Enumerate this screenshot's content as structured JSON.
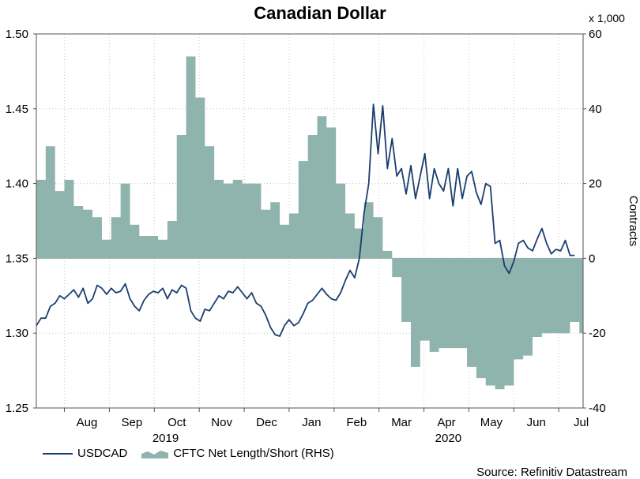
{
  "chart_data": {
    "type": "line+area",
    "title": "Canadian Dollar",
    "left_axis": {
      "min": 1.25,
      "max": 1.5,
      "ticks": [
        "1.50",
        "1.45",
        "1.40",
        "1.35",
        "1.30",
        "1.25"
      ]
    },
    "right_axis": {
      "min": -40,
      "max": 60,
      "ticks": [
        "60",
        "40",
        "20",
        "0",
        "-20",
        "-40"
      ],
      "label": "Contracts",
      "unit": "x 1,000"
    },
    "months": [
      "Aug",
      "Sep",
      "Oct",
      "Nov",
      "Dec",
      "Jan",
      "Feb",
      "Mar",
      "Apr",
      "May",
      "Jun",
      "Jul"
    ],
    "years": [
      "2019",
      "2020"
    ],
    "series_line": {
      "name": "USDCAD",
      "color": "#1a3e6e",
      "points": [
        [
          0,
          1.305
        ],
        [
          0.25,
          1.31
        ],
        [
          0.5,
          1.31
        ],
        [
          0.75,
          1.318
        ],
        [
          1,
          1.32
        ],
        [
          1.25,
          1.325
        ],
        [
          1.5,
          1.323
        ],
        [
          1.75,
          1.326
        ],
        [
          2,
          1.329
        ],
        [
          2.25,
          1.324
        ],
        [
          2.5,
          1.33
        ],
        [
          2.75,
          1.32
        ],
        [
          3,
          1.323
        ],
        [
          3.25,
          1.332
        ],
        [
          3.5,
          1.33
        ],
        [
          3.75,
          1.326
        ],
        [
          4,
          1.33
        ],
        [
          4.25,
          1.327
        ],
        [
          4.5,
          1.328
        ],
        [
          4.75,
          1.333
        ],
        [
          5,
          1.323
        ],
        [
          5.25,
          1.318
        ],
        [
          5.5,
          1.315
        ],
        [
          5.75,
          1.322
        ],
        [
          6,
          1.326
        ],
        [
          6.25,
          1.328
        ],
        [
          6.5,
          1.327
        ],
        [
          6.75,
          1.33
        ],
        [
          7,
          1.323
        ],
        [
          7.25,
          1.329
        ],
        [
          7.5,
          1.327
        ],
        [
          7.75,
          1.332
        ],
        [
          8,
          1.33
        ],
        [
          8.25,
          1.315
        ],
        [
          8.5,
          1.31
        ],
        [
          8.75,
          1.308
        ],
        [
          9,
          1.316
        ],
        [
          9.25,
          1.315
        ],
        [
          9.5,
          1.32
        ],
        [
          9.75,
          1.325
        ],
        [
          10,
          1.323
        ],
        [
          10.25,
          1.328
        ],
        [
          10.5,
          1.327
        ],
        [
          10.75,
          1.331
        ],
        [
          11,
          1.327
        ],
        [
          11.25,
          1.323
        ],
        [
          11.5,
          1.327
        ],
        [
          11.75,
          1.32
        ],
        [
          12,
          1.318
        ],
        [
          12.25,
          1.312
        ],
        [
          12.5,
          1.304
        ],
        [
          12.75,
          1.299
        ],
        [
          13,
          1.298
        ],
        [
          13.25,
          1.305
        ],
        [
          13.5,
          1.309
        ],
        [
          13.75,
          1.305
        ],
        [
          14,
          1.307
        ],
        [
          14.25,
          1.313
        ],
        [
          14.5,
          1.32
        ],
        [
          14.75,
          1.322
        ],
        [
          15,
          1.326
        ],
        [
          15.25,
          1.33
        ],
        [
          15.5,
          1.326
        ],
        [
          15.75,
          1.323
        ],
        [
          16,
          1.322
        ],
        [
          16.25,
          1.327
        ],
        [
          16.5,
          1.335
        ],
        [
          16.75,
          1.342
        ],
        [
          17,
          1.337
        ],
        [
          17.25,
          1.35
        ],
        [
          17.5,
          1.38
        ],
        [
          17.75,
          1.4
        ],
        [
          18,
          1.453
        ],
        [
          18.25,
          1.42
        ],
        [
          18.5,
          1.452
        ],
        [
          18.75,
          1.41
        ],
        [
          19,
          1.43
        ],
        [
          19.25,
          1.405
        ],
        [
          19.5,
          1.41
        ],
        [
          19.75,
          1.393
        ],
        [
          20,
          1.412
        ],
        [
          20.25,
          1.39
        ],
        [
          20.5,
          1.405
        ],
        [
          20.75,
          1.42
        ],
        [
          21,
          1.39
        ],
        [
          21.25,
          1.41
        ],
        [
          21.5,
          1.4
        ],
        [
          21.75,
          1.395
        ],
        [
          22,
          1.41
        ],
        [
          22.25,
          1.385
        ],
        [
          22.5,
          1.41
        ],
        [
          22.75,
          1.39
        ],
        [
          23,
          1.405
        ],
        [
          23.25,
          1.408
        ],
        [
          23.5,
          1.394
        ],
        [
          23.75,
          1.386
        ],
        [
          24,
          1.4
        ],
        [
          24.25,
          1.398
        ],
        [
          24.5,
          1.36
        ],
        [
          24.75,
          1.362
        ],
        [
          25,
          1.345
        ],
        [
          25.25,
          1.34
        ],
        [
          25.5,
          1.348
        ],
        [
          25.75,
          1.36
        ],
        [
          26,
          1.362
        ],
        [
          26.25,
          1.357
        ],
        [
          26.5,
          1.355
        ],
        [
          26.75,
          1.363
        ],
        [
          27,
          1.37
        ],
        [
          27.25,
          1.36
        ],
        [
          27.5,
          1.353
        ],
        [
          27.75,
          1.356
        ],
        [
          28,
          1.355
        ],
        [
          28.25,
          1.362
        ],
        [
          28.5,
          1.352
        ],
        [
          28.75,
          1.352
        ]
      ]
    },
    "series_area": {
      "name": "CFTC Net Length/Short (RHS)",
      "color": "#8fb3ad",
      "steps": [
        [
          0,
          21
        ],
        [
          0.5,
          30
        ],
        [
          1,
          18
        ],
        [
          1.5,
          21
        ],
        [
          2,
          14
        ],
        [
          2.5,
          13
        ],
        [
          3,
          11
        ],
        [
          3.5,
          5
        ],
        [
          4,
          11
        ],
        [
          4.5,
          20
        ],
        [
          5,
          9
        ],
        [
          5.5,
          6
        ],
        [
          6,
          6
        ],
        [
          6.5,
          5
        ],
        [
          7,
          10
        ],
        [
          7.5,
          33
        ],
        [
          8,
          54
        ],
        [
          8.5,
          43
        ],
        [
          9,
          30
        ],
        [
          9.5,
          21
        ],
        [
          10,
          20
        ],
        [
          10.5,
          21
        ],
        [
          11,
          20
        ],
        [
          11.5,
          20
        ],
        [
          12,
          13
        ],
        [
          12.5,
          15
        ],
        [
          13,
          9
        ],
        [
          13.5,
          12
        ],
        [
          14,
          26
        ],
        [
          14.5,
          33
        ],
        [
          15,
          38
        ],
        [
          15.5,
          35
        ],
        [
          16,
          20
        ],
        [
          16.5,
          12
        ],
        [
          17,
          8
        ],
        [
          17.5,
          15
        ],
        [
          18,
          11
        ],
        [
          18.5,
          2
        ],
        [
          19,
          -5
        ],
        [
          19.5,
          -17
        ],
        [
          20,
          -29
        ],
        [
          20.5,
          -22
        ],
        [
          21,
          -25
        ],
        [
          21.5,
          -24
        ],
        [
          22,
          -24
        ],
        [
          22.5,
          -24
        ],
        [
          23,
          -29
        ],
        [
          23.5,
          -32
        ],
        [
          24,
          -34
        ],
        [
          24.5,
          -35
        ],
        [
          25,
          -34
        ],
        [
          25.5,
          -27
        ],
        [
          26,
          -26
        ],
        [
          26.5,
          -21
        ],
        [
          27,
          -20
        ],
        [
          27.5,
          -20
        ],
        [
          28,
          -20
        ],
        [
          28.5,
          -17
        ],
        [
          29,
          -20
        ]
      ]
    }
  },
  "legend": {
    "line_label": "USDCAD",
    "area_label": "CFTC Net Length/Short (RHS)"
  },
  "source": "Source: Refinitiv Datastream",
  "colors": {
    "line": "#1a3e6e",
    "area": "#8fb3ad",
    "grid": "#c8c8c8"
  }
}
